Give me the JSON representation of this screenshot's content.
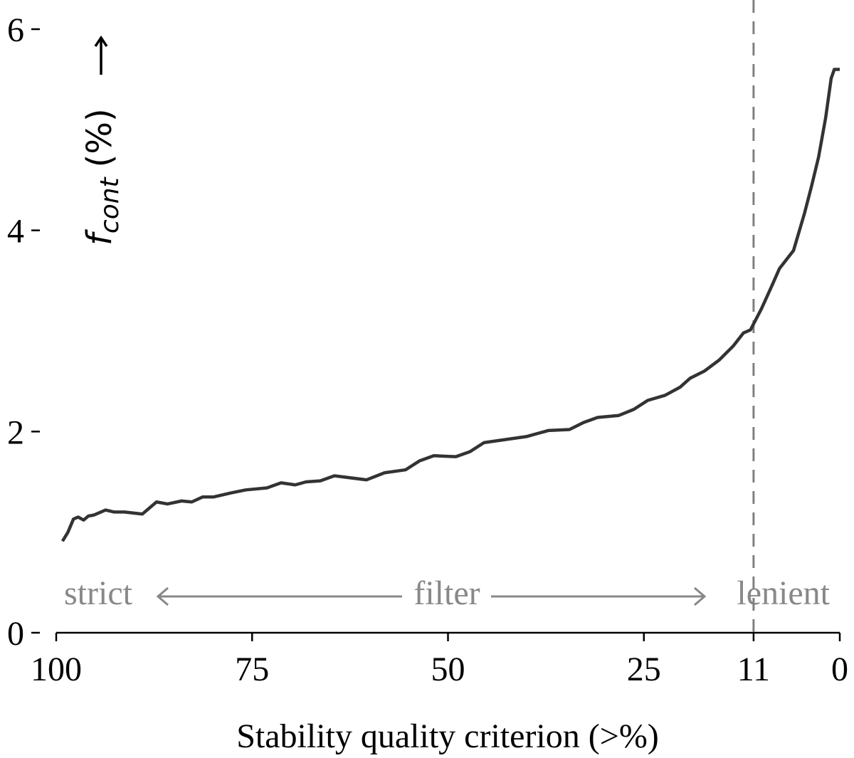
{
  "chart_data": {
    "type": "line",
    "x_label": "Stability quality criterion (>%)",
    "y_label": "f",
    "y_label_sub": "cont",
    "y_label_unit": "(%)",
    "xlim": [
      100,
      0
    ],
    "xticks": [
      100,
      75,
      50,
      25,
      11,
      0
    ],
    "ylim": [
      0,
      6
    ],
    "yticks": [
      0,
      2,
      4,
      6
    ],
    "vline": 11,
    "vline_color": "#808080",
    "annotations": {
      "left": "strict",
      "middle": "filter",
      "right": "lenient"
    },
    "annotation_color": "#888888",
    "series": [
      {
        "name": "f_cont",
        "color": "#333333",
        "x": [
          99.2,
          98.5,
          97.8,
          97.2,
          96.5,
          95.9,
          95.2,
          93.7,
          92.6,
          91.3,
          89.0,
          87.2,
          85.8,
          84.0,
          82.7,
          81.3,
          79.9,
          77.7,
          75.8,
          73.1,
          71.3,
          69.5,
          68.1,
          66.3,
          64.5,
          60.4,
          58.1,
          55.4,
          53.6,
          51.8,
          49.0,
          47.2,
          45.4,
          42.7,
          40.0,
          37.2,
          34.5,
          32.7,
          30.9,
          28.2,
          26.3,
          24.5,
          22.3,
          20.4,
          19.1,
          17.3,
          15.4,
          13.6,
          12.3,
          11.4,
          10.0,
          8.6,
          7.7,
          5.9,
          4.5,
          3.6,
          2.7,
          1.8,
          1.1,
          0.7,
          0
        ],
        "values": [
          0.91,
          1.0,
          1.13,
          1.15,
          1.12,
          1.16,
          1.17,
          1.22,
          1.2,
          1.2,
          1.18,
          1.3,
          1.28,
          1.31,
          1.3,
          1.35,
          1.35,
          1.39,
          1.42,
          1.44,
          1.49,
          1.47,
          1.5,
          1.51,
          1.56,
          1.52,
          1.59,
          1.62,
          1.71,
          1.76,
          1.75,
          1.8,
          1.89,
          1.92,
          1.95,
          2.01,
          2.02,
          2.09,
          2.14,
          2.16,
          2.22,
          2.31,
          2.36,
          2.44,
          2.53,
          2.6,
          2.71,
          2.85,
          2.98,
          3.01,
          3.22,
          3.46,
          3.62,
          3.8,
          4.17,
          4.44,
          4.73,
          5.12,
          5.51,
          5.6,
          5.6
        ]
      }
    ]
  }
}
